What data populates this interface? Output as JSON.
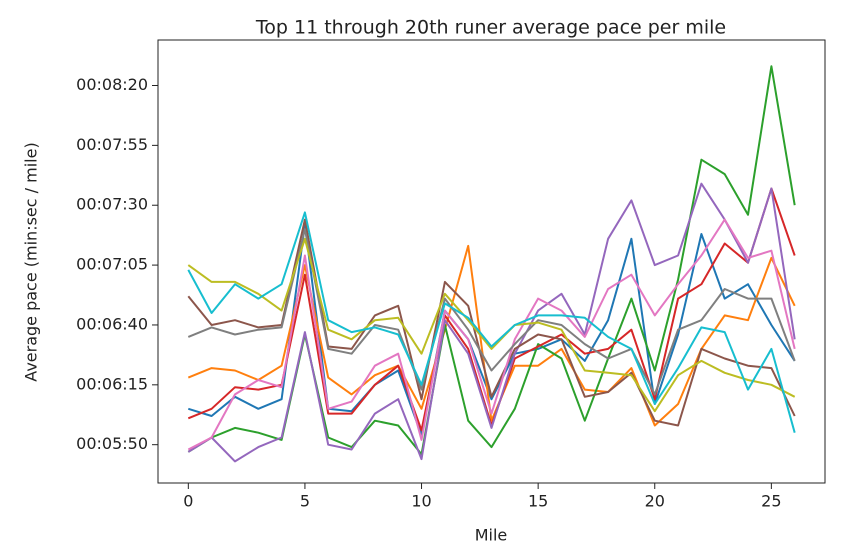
{
  "chart_data": {
    "type": "line",
    "title": "Top 11 through 20th runer average pace per mile",
    "x_label": "Mile",
    "y_label": "Average pace (min:sec / mile)",
    "x": [
      0,
      1,
      2,
      3,
      4,
      5,
      6,
      7,
      8,
      9,
      10,
      11,
      12,
      13,
      14,
      15,
      16,
      17,
      18,
      19,
      20,
      21,
      22,
      23,
      24,
      25,
      26
    ],
    "xlim": [
      -1.3,
      27.3
    ],
    "xticks": [
      0,
      5,
      10,
      15,
      20,
      25
    ],
    "ylim": [
      334,
      519
    ],
    "yticks": [
      {
        "value": 350,
        "label": "00:05:50"
      },
      {
        "value": 375,
        "label": "00:06:15"
      },
      {
        "value": 400,
        "label": "00:06:40"
      },
      {
        "value": 425,
        "label": "00:07:05"
      },
      {
        "value": 450,
        "label": "00:07:30"
      },
      {
        "value": 475,
        "label": "00:07:55"
      },
      {
        "value": 500,
        "label": "00:08:20"
      }
    ],
    "grid": false,
    "series": [
      {
        "color": "#1f77b4",
        "values": [
          365,
          362,
          370,
          365,
          369,
          442,
          365,
          364,
          375,
          381,
          354,
          406,
          394,
          369,
          388,
          390,
          394,
          385,
          402,
          436,
          367,
          396,
          438,
          411,
          417,
          400,
          385
        ]
      },
      {
        "color": "#ff7f0e",
        "values": [
          378,
          382,
          381,
          377,
          383,
          425,
          378,
          371,
          379,
          383,
          365,
          398,
          433,
          360,
          383,
          383,
          390,
          373,
          372,
          382,
          358,
          367,
          390,
          404,
          402,
          428,
          408
        ]
      },
      {
        "color": "#2ca02c",
        "values": [
          347,
          353,
          357,
          355,
          352,
          396,
          353,
          349,
          360,
          358,
          346,
          400,
          360,
          349,
          365,
          392,
          386,
          360,
          386,
          411,
          381,
          419,
          469,
          463,
          446,
          508,
          450
        ]
      },
      {
        "color": "#d62728",
        "values": [
          361,
          365,
          374,
          373,
          375,
          421,
          363,
          363,
          375,
          383,
          356,
          404,
          390,
          358,
          386,
          391,
          396,
          388,
          390,
          398,
          369,
          411,
          417,
          434,
          426,
          457,
          429
        ]
      },
      {
        "color": "#9467bd",
        "values": [
          347,
          353,
          343,
          349,
          353,
          397,
          350,
          348,
          363,
          369,
          344,
          402,
          388,
          357,
          388,
          406,
          413,
          396,
          436,
          452,
          425,
          429,
          459,
          444,
          426,
          457,
          394
        ]
      },
      {
        "color": "#8c564b",
        "values": [
          412,
          400,
          402,
          399,
          400,
          444,
          391,
          390,
          404,
          408,
          369,
          418,
          408,
          370,
          390,
          396,
          394,
          370,
          372,
          380,
          360,
          358,
          390,
          386,
          383,
          382,
          362
        ]
      },
      {
        "color": "#e377c2",
        "values": [
          348,
          353,
          371,
          377,
          374,
          429,
          365,
          368,
          383,
          388,
          352,
          406,
          394,
          363,
          394,
          411,
          406,
          395,
          415,
          421,
          404,
          417,
          429,
          444,
          428,
          431,
          390
        ]
      },
      {
        "color": "#7f7f7f",
        "values": [
          395,
          399,
          396,
          398,
          399,
          440,
          390,
          388,
          400,
          398,
          373,
          411,
          398,
          381,
          392,
          402,
          400,
          392,
          386,
          390,
          371,
          398,
          402,
          415,
          411,
          411,
          385
        ]
      },
      {
        "color": "#bcbd22",
        "values": [
          425,
          418,
          418,
          413,
          406,
          436,
          398,
          394,
          402,
          403,
          388,
          413,
          402,
          390,
          400,
          401,
          398,
          381,
          380,
          379,
          364,
          379,
          385,
          380,
          377,
          375,
          370
        ]
      },
      {
        "color": "#17becf",
        "values": [
          423,
          405,
          417,
          411,
          417,
          447,
          402,
          397,
          399,
          396,
          375,
          409,
          403,
          391,
          400,
          404,
          404,
          403,
          395,
          390,
          367,
          382,
          399,
          397,
          373,
          390,
          355
        ]
      }
    ]
  }
}
